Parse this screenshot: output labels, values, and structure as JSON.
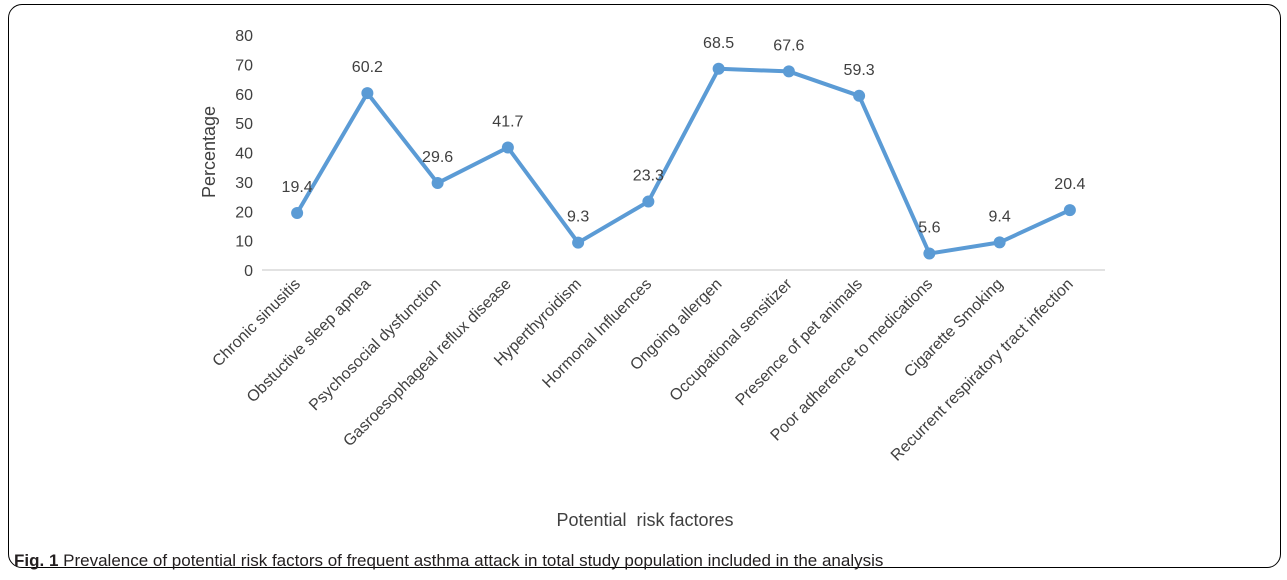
{
  "chart_data": {
    "type": "line",
    "categories": [
      "Chronic sinusitis",
      "Obstuctive sleep apnea",
      "Psychosocial dysfunction",
      "Gasroesophageal reflux disease",
      "Hyperthyroidism",
      "Hormonal Influences",
      "Ongoing allergen",
      "Occupational sensitizer",
      "Presence of pet animals",
      "Poor adherence to medications",
      "Cigarette Smoking",
      "Recurrent respiratory tract infection"
    ],
    "values": [
      19.4,
      60.2,
      29.6,
      41.7,
      9.3,
      23.3,
      68.5,
      67.6,
      59.3,
      5.6,
      9.4,
      20.4
    ],
    "value_labels": [
      "19.4",
      "60.2",
      "29.6",
      "41.7",
      "9.3",
      "23.3",
      "68.5",
      "67.6",
      "59.3",
      "5.6",
      "9.4",
      "20.4"
    ],
    "yticks": [
      "0",
      "10",
      "20",
      "30",
      "40",
      "50",
      "60",
      "70",
      "80"
    ],
    "ylim": [
      0,
      80
    ],
    "xlabel": "Potential  risk factores",
    "ylabel": "Percentage",
    "line_color": "#5b9bd5",
    "grid": false,
    "legend": false
  },
  "caption": {
    "label": "Fig. 1",
    "text": " Prevalence of potential risk factors of frequent asthma attack in total study population included in the analysis"
  }
}
